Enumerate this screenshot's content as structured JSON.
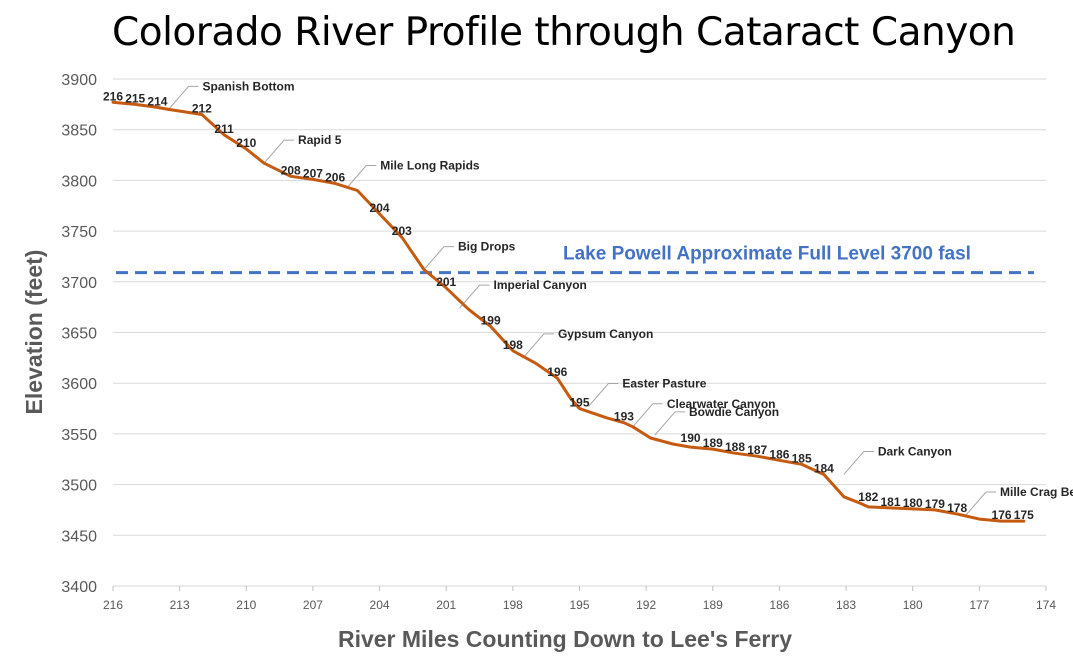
{
  "chart_data": {
    "type": "line",
    "title": "Colorado River Profile through Cataract Canyon",
    "xlabel": "River Miles Counting Down to Lee's Ferry",
    "ylabel": "Elevation (feet)",
    "xlim": [
      216,
      174
    ],
    "ylim": [
      3400,
      3900
    ],
    "x_ticks": [
      "216",
      "213",
      "210",
      "207",
      "204",
      "201",
      "198",
      "195",
      "192",
      "189",
      "186",
      "183",
      "180",
      "177",
      "174"
    ],
    "y_ticks": [
      "3400",
      "3450",
      "3500",
      "3550",
      "3600",
      "3650",
      "3700",
      "3750",
      "3800",
      "3850",
      "3900"
    ],
    "grid": true,
    "line_color": "#C55A11",
    "series": [
      {
        "x": [
          216,
          215,
          214,
          213.5,
          212,
          211,
          210,
          209.2,
          208,
          207,
          206,
          205,
          204,
          203,
          202,
          201,
          200,
          199,
          198,
          197,
          196,
          195.4,
          195,
          193.8,
          193,
          192.6,
          191.8,
          190.8,
          190,
          189,
          188,
          187,
          186,
          185,
          184,
          183.1,
          182.4,
          182,
          181,
          180,
          179,
          178,
          177,
          176,
          175
        ],
        "y": [
          3877,
          3875,
          3872,
          3870,
          3865,
          3845,
          3831,
          3817,
          3804,
          3801,
          3797,
          3790,
          3767,
          3744,
          3712,
          3694,
          3673,
          3656,
          3632,
          3620,
          3605,
          3585,
          3575,
          3566,
          3561,
          3557,
          3546,
          3540,
          3537,
          3535,
          3531,
          3528,
          3524,
          3520,
          3510,
          3488,
          3482,
          3478,
          3477,
          3476,
          3475,
          3471,
          3466,
          3464,
          3464
        ]
      }
    ],
    "point_labels": [
      {
        "x": 216,
        "y": 3877,
        "text": "216"
      },
      {
        "x": 215,
        "y": 3875,
        "text": "215"
      },
      {
        "x": 214,
        "y": 3872,
        "text": "214"
      },
      {
        "x": 212,
        "y": 3865,
        "text": "212"
      },
      {
        "x": 211,
        "y": 3845,
        "text": "211"
      },
      {
        "x": 210,
        "y": 3831,
        "text": "210"
      },
      {
        "x": 208,
        "y": 3804,
        "text": "208"
      },
      {
        "x": 207,
        "y": 3801,
        "text": "207"
      },
      {
        "x": 206,
        "y": 3797,
        "text": "206"
      },
      {
        "x": 204,
        "y": 3767,
        "text": "204"
      },
      {
        "x": 203,
        "y": 3744,
        "text": "203"
      },
      {
        "x": 201,
        "y": 3694,
        "text": "201"
      },
      {
        "x": 199,
        "y": 3656,
        "text": "199"
      },
      {
        "x": 198,
        "y": 3632,
        "text": "198"
      },
      {
        "x": 196,
        "y": 3605,
        "text": "196"
      },
      {
        "x": 195,
        "y": 3575,
        "text": "195"
      },
      {
        "x": 193,
        "y": 3561,
        "text": "193"
      },
      {
        "x": 190,
        "y": 3540,
        "text": "190"
      },
      {
        "x": 189,
        "y": 3535,
        "text": "189"
      },
      {
        "x": 188,
        "y": 3531,
        "text": "188"
      },
      {
        "x": 187,
        "y": 3528,
        "text": "187"
      },
      {
        "x": 186,
        "y": 3524,
        "text": "186"
      },
      {
        "x": 185,
        "y": 3520,
        "text": "185"
      },
      {
        "x": 184,
        "y": 3510,
        "text": "184"
      },
      {
        "x": 182,
        "y": 3482,
        "text": "182"
      },
      {
        "x": 181,
        "y": 3477,
        "text": "181"
      },
      {
        "x": 180,
        "y": 3476,
        "text": "180"
      },
      {
        "x": 179,
        "y": 3475,
        "text": "179"
      },
      {
        "x": 178,
        "y": 3471,
        "text": "178"
      },
      {
        "x": 176,
        "y": 3464,
        "text": "176"
      },
      {
        "x": 175,
        "y": 3464,
        "text": "175"
      }
    ],
    "annotations": [
      {
        "text": "Spanish Bottom",
        "x": 213.5,
        "y": 3870
      },
      {
        "text": "Rapid 5",
        "x": 209.2,
        "y": 3817
      },
      {
        "text": "Mile Long Rapids",
        "x": 205.5,
        "y": 3792
      },
      {
        "text": "Big Drops",
        "x": 202,
        "y": 3712
      },
      {
        "text": "Imperial Canyon",
        "x": 200.4,
        "y": 3674
      },
      {
        "text": "Gypsum Canyon",
        "x": 197.5,
        "y": 3626
      },
      {
        "text": "Easter Pasture",
        "x": 194.6,
        "y": 3577
      },
      {
        "text": "Clearwater Canyon",
        "x": 192.6,
        "y": 3557
      },
      {
        "text": "Bowdie Canyon",
        "x": 191.6,
        "y": 3549
      },
      {
        "text": "Dark Canyon",
        "x": 183.1,
        "y": 3510
      },
      {
        "text": "Mille Crag Bend",
        "x": 177.6,
        "y": 3470
      }
    ],
    "reference_line": {
      "y": 3709,
      "text": "Lake Powell Approximate Full Level 3700 fasl",
      "color": "#4472C4",
      "style": "dashed"
    }
  }
}
